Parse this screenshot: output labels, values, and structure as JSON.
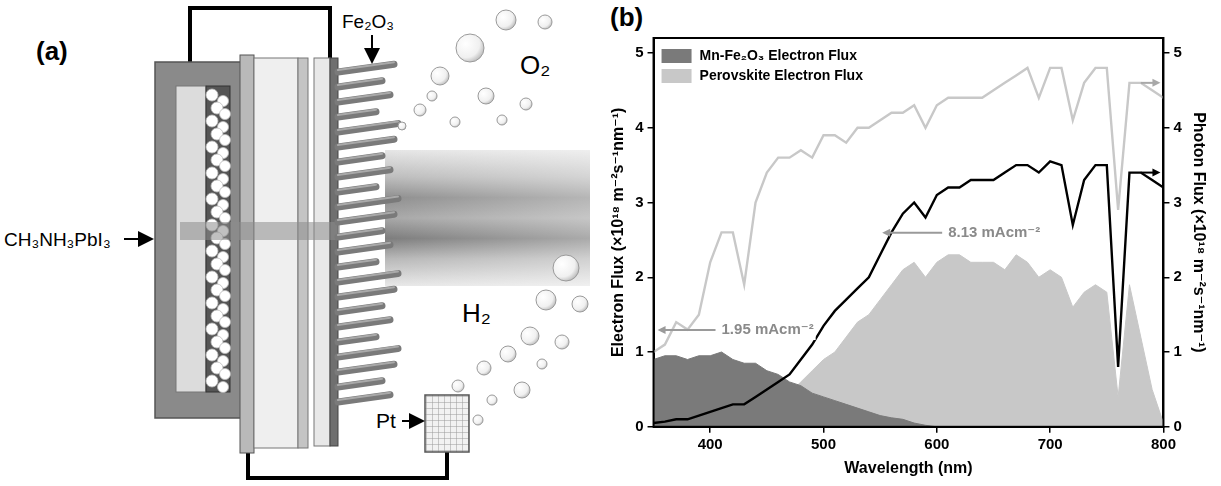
{
  "diagram": {
    "panel_label": "(a)",
    "labels": {
      "absorber": "CH₃NH₃PbI₃",
      "photoanode": "Fe₂O₃",
      "anode_gas": "O₂",
      "cathode_gas": "H₂",
      "cathode": "Pt"
    }
  },
  "chart_data": {
    "panel_label": "(b)",
    "type": "line",
    "x_label": "Wavelength (nm)",
    "y_label": "Electron Flux (×10¹⁸ m⁻²s⁻¹nm⁻¹)",
    "y2_label": "Photon Flux (×10¹⁸ m⁻²s⁻¹nm⁻¹)",
    "x": [
      350,
      360,
      370,
      380,
      390,
      400,
      410,
      420,
      430,
      440,
      450,
      460,
      470,
      480,
      490,
      500,
      510,
      520,
      530,
      540,
      550,
      560,
      570,
      580,
      590,
      600,
      610,
      620,
      630,
      640,
      650,
      660,
      670,
      680,
      690,
      700,
      710,
      720,
      730,
      740,
      750,
      760,
      770,
      780,
      790,
      800
    ],
    "xlim": [
      350,
      800
    ],
    "xticks": [
      400,
      500,
      600,
      700,
      800
    ],
    "ylim": [
      0,
      5.2
    ],
    "yticks": [
      0,
      1,
      2,
      3,
      4,
      5
    ],
    "y2lim": [
      0,
      5.2
    ],
    "y2ticks": [
      0,
      1,
      2,
      3,
      4,
      5
    ],
    "grid": false,
    "legend": "upper left",
    "series": [
      {
        "name": "Mn-Fe₂O₃ Electron Flux",
        "type": "area",
        "color": "#7a7a7a",
        "annotation": "1.95 mAcm⁻²",
        "values": [
          0.9,
          0.95,
          0.95,
          0.9,
          0.95,
          0.95,
          1.0,
          0.9,
          0.85,
          0.85,
          0.75,
          0.7,
          0.6,
          0.55,
          0.45,
          0.4,
          0.35,
          0.3,
          0.25,
          0.2,
          0.15,
          0.12,
          0.1,
          0.05,
          0.02,
          0,
          null,
          null,
          null,
          null,
          null,
          null,
          null,
          null,
          null,
          null,
          null,
          null,
          null,
          null,
          null,
          null,
          null,
          null,
          null,
          null
        ]
      },
      {
        "name": "Perovskite Electron Flux",
        "type": "area",
        "color": "#c8c8c8",
        "annotation": "8.13 mAcm⁻²",
        "values": [
          0.02,
          0.02,
          0.03,
          0.03,
          0.04,
          0.05,
          0.07,
          0.1,
          0.1,
          0.2,
          0.3,
          0.35,
          0.45,
          0.6,
          0.75,
          0.9,
          1.0,
          1.2,
          1.4,
          1.5,
          1.7,
          1.9,
          2.1,
          2.2,
          2.0,
          2.2,
          2.3,
          2.3,
          2.2,
          2.2,
          2.2,
          2.1,
          2.3,
          2.2,
          2.0,
          2.1,
          2.0,
          1.6,
          1.8,
          1.9,
          1.8,
          0.4,
          1.9,
          1.2,
          0.5,
          0.05
        ]
      },
      {
        "type": "line",
        "color": "#c8c8c8",
        "axis": "y2",
        "values": [
          1.0,
          1.1,
          1.4,
          1.3,
          1.5,
          2.2,
          2.6,
          2.6,
          1.9,
          3.0,
          3.4,
          3.6,
          3.6,
          3.7,
          3.6,
          3.9,
          3.9,
          3.8,
          4.0,
          4.0,
          4.1,
          4.2,
          4.2,
          4.3,
          4.0,
          4.3,
          4.4,
          4.4,
          4.4,
          4.4,
          4.5,
          4.6,
          4.7,
          4.8,
          4.4,
          4.8,
          4.8,
          4.1,
          4.6,
          4.8,
          4.8,
          2.9,
          4.6,
          4.6,
          4.5,
          4.4
        ]
      },
      {
        "type": "line",
        "color": "#000000",
        "axis": "y2",
        "values": [
          0.05,
          0.07,
          0.1,
          0.1,
          0.15,
          0.2,
          0.25,
          0.3,
          0.3,
          0.4,
          0.5,
          0.6,
          0.7,
          0.9,
          1.1,
          1.35,
          1.55,
          1.7,
          1.85,
          2.0,
          2.3,
          2.6,
          2.85,
          3.0,
          2.8,
          3.1,
          3.2,
          3.2,
          3.3,
          3.3,
          3.3,
          3.4,
          3.5,
          3.5,
          3.4,
          3.55,
          3.5,
          2.7,
          3.3,
          3.5,
          3.5,
          0.8,
          3.4,
          3.4,
          3.3,
          3.2
        ]
      }
    ]
  }
}
